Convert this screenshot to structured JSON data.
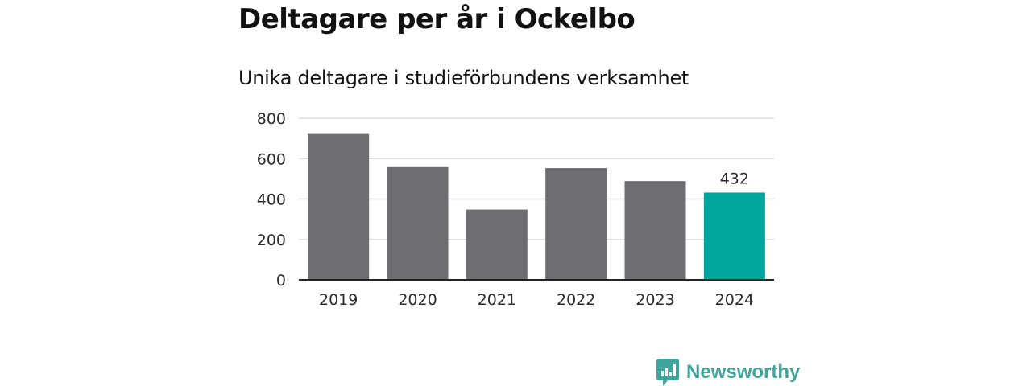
{
  "header": {
    "title": "Deltagare per år i Ockelbo",
    "subtitle": "Unika deltagare i studieförbundens verksamhet"
  },
  "chart_data": {
    "type": "bar",
    "title": "Deltagare per år i Ockelbo",
    "subtitle": "Unika deltagare i studieförbundens verksamhet",
    "categories": [
      "2019",
      "2020",
      "2021",
      "2022",
      "2023",
      "2024"
    ],
    "values": [
      722,
      558,
      348,
      553,
      489,
      432
    ],
    "highlight_index": 5,
    "data_labels": [
      {
        "category": "2024",
        "text": "432"
      }
    ],
    "xlabel": "",
    "ylabel": "",
    "ylim": [
      0,
      800
    ],
    "yticks": [
      0,
      200,
      400,
      600,
      800
    ],
    "grid": true,
    "legend": "none",
    "colors": {
      "bar": "#6e6d72",
      "highlight": "#00a59b",
      "grid": "#dddddd",
      "axis": "#222222"
    }
  },
  "brand": {
    "name": "Newsworthy",
    "icon": "newsworthy-logo-icon",
    "color": "#3fa49c"
  }
}
